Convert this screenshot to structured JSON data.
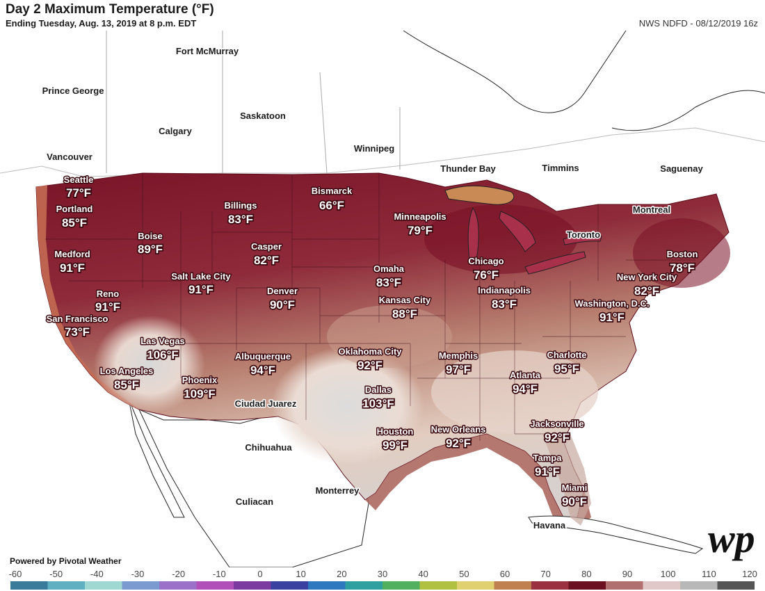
{
  "header": {
    "title": "Day 2 Maximum Temperature (°F)",
    "subtitle": "Ending Tuesday, Aug. 13, 2019 at 8 p.m. EDT",
    "source": "NWS NDFD - 08/12/2019 16z"
  },
  "footer": {
    "powered_by": "Powered by Pivotal Weather"
  },
  "legend": {
    "ticks": [
      "-60",
      "-50",
      "-40",
      "-30",
      "-20",
      "-10",
      "0",
      "10",
      "20",
      "30",
      "40",
      "50",
      "60",
      "70",
      "80",
      "90",
      "100",
      "110",
      "120"
    ],
    "colors": [
      "#3a7a9a",
      "#5fb0c0",
      "#9fd8d0",
      "#7a9ad0",
      "#9a70c8",
      "#b050b8",
      "#7a3aa0",
      "#3a40a0",
      "#2e78c0",
      "#2fa0a0",
      "#50b060",
      "#b0c040",
      "#e0d070",
      "#c08050",
      "#9a3040",
      "#6a1020",
      "#b07070",
      "#e0c8c8",
      "#b8b8b8",
      "#555555"
    ]
  },
  "places": [
    "Fort McMurray",
    "Prince George",
    "Saskatoon",
    "Calgary",
    "Vancouver",
    "Winnipeg",
    "Thunder Bay",
    "Timmins",
    "Saguenay",
    "Montreal",
    "Toronto",
    "Chihuahua",
    "Ciudad Juarez",
    "Monterrey",
    "Culiacan",
    "Havana"
  ],
  "cities": [
    {
      "name": "Seattle",
      "temp": "77°F"
    },
    {
      "name": "Portland",
      "temp": "85°F"
    },
    {
      "name": "Medford",
      "temp": "91°F"
    },
    {
      "name": "Boise",
      "temp": "89°F"
    },
    {
      "name": "Billings",
      "temp": "83°F"
    },
    {
      "name": "Bismarck",
      "temp": "66°F"
    },
    {
      "name": "Minneapolis",
      "temp": "79°F"
    },
    {
      "name": "Casper",
      "temp": "82°F"
    },
    {
      "name": "Salt Lake City",
      "temp": "91°F"
    },
    {
      "name": "Reno",
      "temp": "91°F"
    },
    {
      "name": "San Francisco",
      "temp": "73°F"
    },
    {
      "name": "Las Vegas",
      "temp": "106°F"
    },
    {
      "name": "Los Angeles",
      "temp": "85°F"
    },
    {
      "name": "Phoenix",
      "temp": "109°F"
    },
    {
      "name": "Denver",
      "temp": "90°F"
    },
    {
      "name": "Albuquerque",
      "temp": "94°F"
    },
    {
      "name": "Omaha",
      "temp": "83°F"
    },
    {
      "name": "Kansas City",
      "temp": "88°F"
    },
    {
      "name": "Oklahoma City",
      "temp": "92°F"
    },
    {
      "name": "Dallas",
      "temp": "103°F"
    },
    {
      "name": "Houston",
      "temp": "99°F"
    },
    {
      "name": "Chicago",
      "temp": "76°F"
    },
    {
      "name": "Indianapolis",
      "temp": "83°F"
    },
    {
      "name": "Memphis",
      "temp": "97°F"
    },
    {
      "name": "New Orleans",
      "temp": "92°F"
    },
    {
      "name": "Atlanta",
      "temp": "94°F"
    },
    {
      "name": "Charlotte",
      "temp": "95°F"
    },
    {
      "name": "Jacksonville",
      "temp": "92°F"
    },
    {
      "name": "Tampa",
      "temp": "91°F"
    },
    {
      "name": "Miami",
      "temp": "90°F"
    },
    {
      "name": "Washington, D.C.",
      "temp": "91°F"
    },
    {
      "name": "New York City",
      "temp": "82°F"
    },
    {
      "name": "Boston",
      "temp": "78°F"
    }
  ]
}
